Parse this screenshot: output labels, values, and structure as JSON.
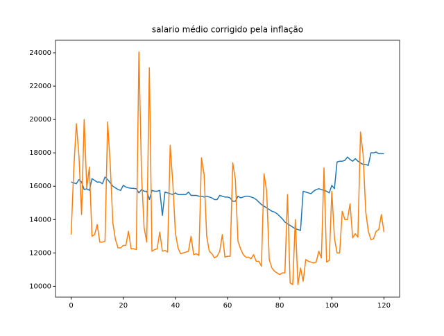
{
  "chart_data": {
    "type": "line",
    "title": "salario médio corrigido pela inflação",
    "x": [
      0,
      1,
      2,
      3,
      4,
      5,
      6,
      7,
      8,
      9,
      10,
      11,
      12,
      13,
      14,
      15,
      16,
      17,
      18,
      19,
      20,
      21,
      22,
      23,
      24,
      25,
      26,
      27,
      28,
      29,
      30,
      31,
      32,
      33,
      34,
      35,
      36,
      37,
      38,
      39,
      40,
      41,
      42,
      43,
      44,
      45,
      46,
      47,
      48,
      49,
      50,
      51,
      52,
      53,
      54,
      55,
      56,
      57,
      58,
      59,
      60,
      61,
      62,
      63,
      64,
      65,
      66,
      67,
      68,
      69,
      70,
      71,
      72,
      73,
      74,
      75,
      76,
      77,
      78,
      79,
      80,
      81,
      82,
      83,
      84,
      85,
      86,
      87,
      88,
      89,
      90,
      91,
      92,
      93,
      94,
      95,
      96,
      97,
      98,
      99,
      100,
      101,
      102,
      103,
      104,
      105,
      106,
      107,
      108,
      109,
      110,
      111,
      112,
      113,
      114,
      115,
      116,
      117,
      118,
      119,
      120
    ],
    "series": [
      {
        "color": "#1f77b4",
        "values": [
          16250,
          16200,
          16150,
          16400,
          16250,
          15800,
          15850,
          15750,
          16450,
          16350,
          16250,
          16250,
          16150,
          16550,
          16400,
          16200,
          16000,
          15900,
          15800,
          15750,
          16050,
          15950,
          15900,
          15880,
          15870,
          15850,
          15600,
          15800,
          15700,
          15700,
          15200,
          15750,
          15700,
          15700,
          15750,
          14250,
          15650,
          15600,
          15550,
          15500,
          15600,
          15500,
          15500,
          15500,
          15500,
          15650,
          15450,
          15450,
          15450,
          15400,
          15400,
          15350,
          15400,
          15350,
          15300,
          15200,
          15200,
          15450,
          15400,
          15350,
          15350,
          15300,
          15100,
          15100,
          15400,
          15300,
          15350,
          15400,
          15400,
          15350,
          15300,
          15200,
          15050,
          14900,
          14800,
          14700,
          14600,
          14500,
          14450,
          14350,
          14200,
          14050,
          13850,
          13750,
          13650,
          13550,
          13450,
          13400,
          13350,
          15700,
          15650,
          15600,
          15550,
          15700,
          15800,
          15850,
          15800,
          15750,
          15700,
          15600,
          16050,
          15850,
          17450,
          17500,
          17500,
          17550,
          17750,
          17600,
          17500,
          17650,
          17500,
          17400,
          17300,
          17300,
          17250,
          18000,
          18000,
          18050,
          17950,
          17950,
          17950
        ]
      },
      {
        "color": "#ff7f0e",
        "values": [
          13100,
          17000,
          19750,
          17800,
          14300,
          20000,
          15900,
          17150,
          13000,
          13100,
          13700,
          12650,
          12650,
          12700,
          19850,
          17300,
          13800,
          12800,
          12300,
          12300,
          12450,
          12450,
          13300,
          12250,
          12250,
          12200,
          24050,
          16700,
          13500,
          12650,
          23100,
          12100,
          12200,
          12250,
          13250,
          12100,
          12150,
          12050,
          18450,
          16200,
          13200,
          12300,
          11950,
          12000,
          12050,
          12100,
          13000,
          11900,
          11950,
          11850,
          17700,
          16700,
          13000,
          12100,
          11950,
          11700,
          11800,
          12100,
          13100,
          11750,
          11800,
          11800,
          17400,
          16400,
          12700,
          12250,
          11900,
          11750,
          11750,
          11650,
          11900,
          11500,
          11500,
          11200,
          16750,
          15700,
          11600,
          11100,
          10900,
          10800,
          10700,
          10800,
          10800,
          15500,
          10200,
          10100,
          14000,
          10100,
          11100,
          10300,
          11600,
          11500,
          11450,
          11400,
          11450,
          12100,
          11700,
          17100,
          11450,
          11550,
          15700,
          12900,
          12000,
          12000,
          14500,
          14000,
          14000,
          14950,
          12900,
          13150,
          12950,
          19250,
          17900,
          14500,
          13300,
          12800,
          12850,
          13300,
          13400,
          14300,
          13250
        ]
      }
    ],
    "xlim": [
      -6,
      126
    ],
    "xticks": [
      0,
      20,
      40,
      60,
      80,
      100,
      120
    ],
    "ylim": [
      9350,
      24750
    ],
    "yticks": [
      10000,
      12000,
      14000,
      16000,
      18000,
      20000,
      22000,
      24000
    ]
  }
}
